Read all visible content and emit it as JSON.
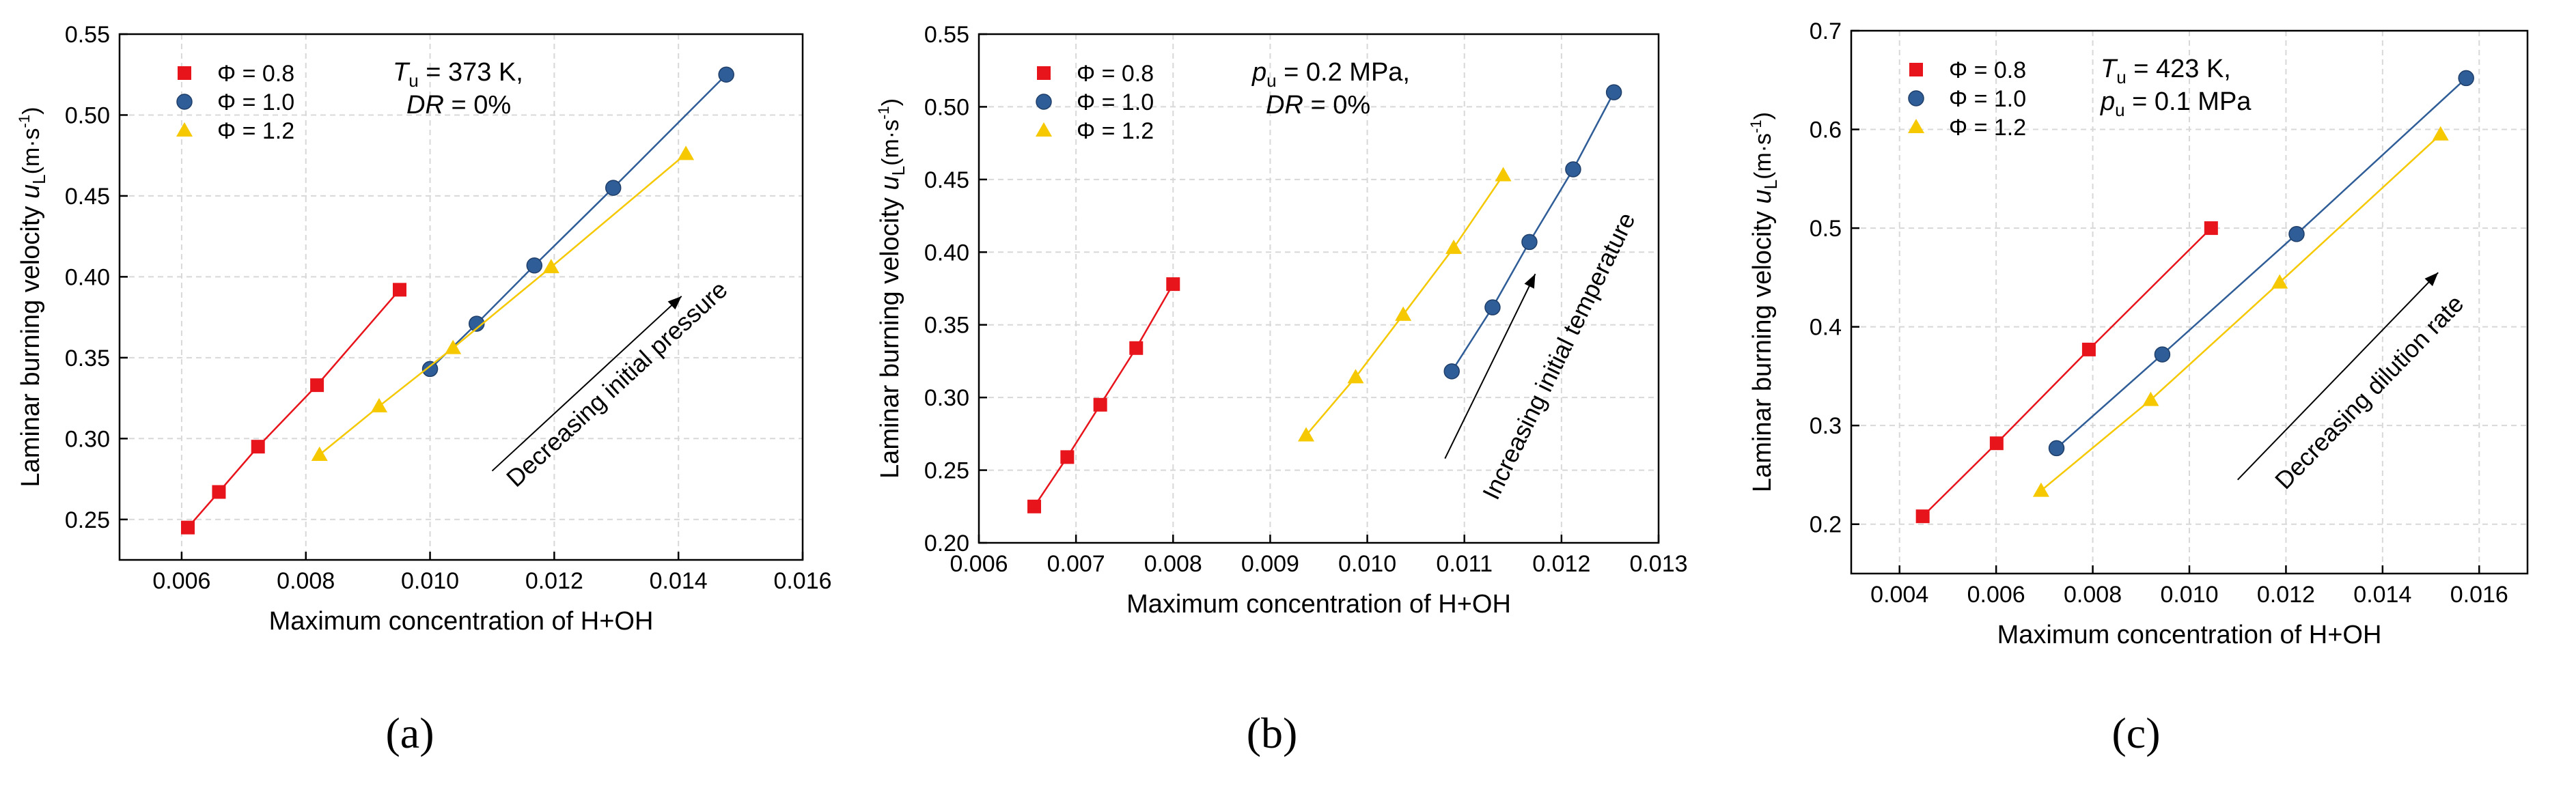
{
  "figure_labels": [
    "(a)",
    "(b)",
    "(c)"
  ],
  "chart_data": [
    {
      "type": "scatter",
      "panel": "(a)",
      "xlabel": "Maximum concentration of H+OH",
      "ylabel": "Laminar burning velocity",
      "ylabel_symbol": "u",
      "ylabel_sub": "L",
      "ylabel_unit": "(m·s",
      "ylabel_unit_exp": "-1",
      "ylabel_unit_close": ")",
      "xlim": [
        0.005,
        0.016
      ],
      "ylim": [
        0.225,
        0.55
      ],
      "xticks": [
        0.006,
        0.008,
        0.01,
        0.012,
        0.014,
        0.016
      ],
      "xtick_labels": [
        "0.006",
        "0.008",
        "0.010",
        "0.012",
        "0.014",
        "0.016"
      ],
      "yticks": [
        0.25,
        0.3,
        0.35,
        0.4,
        0.45,
        0.5,
        0.55
      ],
      "ytick_labels": [
        "0.25",
        "0.30",
        "0.35",
        "0.40",
        "0.45",
        "0.50",
        "0.55"
      ],
      "grid": true,
      "legend_position": "top-left",
      "conditions": [
        {
          "symbol": "T",
          "sub": "u",
          "text": " = 373 K,"
        },
        {
          "symbol": "DR",
          "sub": "",
          "text": " = 0%"
        }
      ],
      "series": [
        {
          "name": "Φ = 0.8",
          "marker": "square",
          "color": "#e8141b",
          "x": [
            0.0061,
            0.0066,
            0.00723,
            0.00818,
            0.00951
          ],
          "y": [
            0.245,
            0.267,
            0.295,
            0.333,
            0.392
          ]
        },
        {
          "name": "Φ = 1.0",
          "marker": "circle",
          "color": "#2f5d97",
          "x": [
            0.01,
            0.01075,
            0.01168,
            0.01295,
            0.01477
          ],
          "y": [
            0.343,
            0.371,
            0.407,
            0.455,
            0.525
          ]
        },
        {
          "name": "Φ = 1.2",
          "marker": "triangle",
          "color": "#f5c800",
          "x": [
            0.00822,
            0.00918,
            0.01037,
            0.01195,
            0.01412
          ],
          "y": [
            0.29,
            0.32,
            0.356,
            0.406,
            0.476
          ]
        }
      ],
      "annotation": {
        "text": "Decreasing initial pressure",
        "from": [
          0.011,
          0.28
        ],
        "to": [
          0.01405,
          0.388
        ],
        "text_at": [
          0.0131,
          0.33
        ]
      }
    },
    {
      "type": "scatter",
      "panel": "(b)",
      "xlabel": "Maximum concentration of H+OH",
      "ylabel": "Laminar burning velocity",
      "ylabel_symbol": "u",
      "ylabel_sub": "L",
      "ylabel_unit": "(m·s",
      "ylabel_unit_exp": "-1",
      "ylabel_unit_close": ")",
      "xlim": [
        0.006,
        0.013
      ],
      "ylim": [
        0.2,
        0.55
      ],
      "xticks": [
        0.006,
        0.007,
        0.008,
        0.009,
        0.01,
        0.011,
        0.012,
        0.013
      ],
      "xtick_labels": [
        "0.006",
        "0.007",
        "0.008",
        "0.009",
        "0.010",
        "0.011",
        "0.012",
        "0.013"
      ],
      "yticks": [
        0.2,
        0.25,
        0.3,
        0.35,
        0.4,
        0.45,
        0.5,
        0.55
      ],
      "ytick_labels": [
        "0.20",
        "0.25",
        "0.30",
        "0.35",
        "0.40",
        "0.45",
        "0.50",
        "0.55"
      ],
      "grid": true,
      "legend_position": "top-left",
      "conditions": [
        {
          "symbol": "p",
          "sub": "u",
          "text": " = 0.2 MPa,"
        },
        {
          "symbol": "DR",
          "sub": "",
          "text": " = 0%"
        }
      ],
      "series": [
        {
          "name": "Φ = 0.8",
          "marker": "square",
          "color": "#e8141b",
          "x": [
            0.00657,
            0.00691,
            0.00725,
            0.00762,
            0.008
          ],
          "y": [
            0.225,
            0.259,
            0.295,
            0.334,
            0.378
          ]
        },
        {
          "name": "Φ = 1.0",
          "marker": "circle",
          "color": "#2f5d97",
          "x": [
            0.01087,
            0.01129,
            0.01167,
            0.01212,
            0.01254
          ],
          "y": [
            0.318,
            0.362,
            0.407,
            0.457,
            0.51
          ]
        },
        {
          "name": "Φ = 1.2",
          "marker": "triangle",
          "color": "#f5c800",
          "x": [
            0.00937,
            0.00988,
            0.01037,
            0.01089,
            0.0114
          ],
          "y": [
            0.274,
            0.314,
            0.357,
            0.403,
            0.453
          ]
        }
      ],
      "annotation": {
        "text": "Increasing initial temperature",
        "from": [
          0.0108,
          0.258
        ],
        "to": [
          0.01173,
          0.385
        ],
        "text_at": [
          0.01205,
          0.326
        ]
      }
    },
    {
      "type": "scatter",
      "panel": "(c)",
      "xlabel": "Maximum concentration of H+OH",
      "ylabel": "Laminar burning velocity",
      "ylabel_symbol": "u",
      "ylabel_sub": "L",
      "ylabel_unit": "(m·s",
      "ylabel_unit_exp": "-1",
      "ylabel_unit_close": ")",
      "xlim": [
        0.003,
        0.017
      ],
      "ylim": [
        0.15,
        0.7
      ],
      "xticks": [
        0.004,
        0.006,
        0.008,
        0.01,
        0.012,
        0.014,
        0.016
      ],
      "xtick_labels": [
        "0.004",
        "0.006",
        "0.008",
        "0.010",
        "0.012",
        "0.014",
        "0.016"
      ],
      "yticks": [
        0.2,
        0.3,
        0.4,
        0.5,
        0.6,
        0.7
      ],
      "ytick_labels": [
        "0.2",
        "0.3",
        "0.4",
        "0.5",
        "0.6",
        "0.7"
      ],
      "grid": true,
      "legend_position": "top-left",
      "conditions": [
        {
          "symbol": "T",
          "sub": "u",
          "text": " = 423 K,"
        },
        {
          "symbol": "p",
          "sub": "u",
          "text": " = 0.1 MPa"
        }
      ],
      "series": [
        {
          "name": "Φ = 0.8",
          "marker": "square",
          "color": "#e8141b",
          "x": [
            0.00448,
            0.00601,
            0.00792,
            0.01045
          ],
          "y": [
            0.208,
            0.282,
            0.377,
            0.5
          ]
        },
        {
          "name": "Φ = 1.0",
          "marker": "circle",
          "color": "#2f5d97",
          "x": [
            0.00725,
            0.00944,
            0.01222,
            0.01573
          ],
          "y": [
            0.277,
            0.372,
            0.494,
            0.652
          ]
        },
        {
          "name": "Φ = 1.2",
          "marker": "triangle",
          "color": "#f5c800",
          "x": [
            0.00693,
            0.0092,
            0.01187,
            0.0152
          ],
          "y": [
            0.234,
            0.326,
            0.445,
            0.595
          ]
        }
      ],
      "annotation": {
        "text": "Decreasing dilution rate",
        "from": [
          0.011,
          0.245
        ],
        "to": [
          0.01515,
          0.455
        ],
        "text_at": [
          0.01385,
          0.328
        ]
      }
    }
  ]
}
